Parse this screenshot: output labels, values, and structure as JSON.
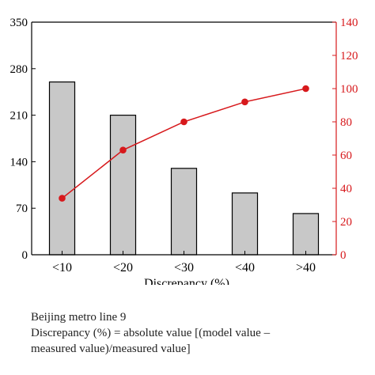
{
  "chart_data": {
    "type": "bar+line",
    "categories": [
      "<10",
      "<20",
      "<30",
      "<40",
      ">40"
    ],
    "series": [
      {
        "type": "bar",
        "axis": "left",
        "values": [
          260,
          210,
          130,
          93,
          62
        ],
        "color": "#c8c8c8",
        "edge_color": "#000000"
      },
      {
        "type": "line",
        "axis": "right",
        "values": [
          34,
          63,
          80,
          92,
          100
        ],
        "color": "#d7191c"
      }
    ],
    "xlabel": "Discrepancy (%)",
    "ylabel_left": "",
    "ylabel_right": "",
    "y_left": {
      "lim": [
        0,
        350
      ],
      "ticks": [
        "0",
        "70",
        "140",
        "210",
        "280",
        "350"
      ],
      "color": "#000000"
    },
    "y_right": {
      "lim": [
        0,
        140
      ],
      "ticks": [
        "0",
        "20",
        "40",
        "60",
        "80",
        "100",
        "120",
        "140"
      ],
      "color": "#d7191c"
    },
    "grid": false,
    "legend": "none"
  },
  "caption": {
    "line1": "Beijing metro line 9",
    "line2": "Discrepancy (%) = absolute value [(model value –",
    "line3": "measured value)/measured value]"
  }
}
